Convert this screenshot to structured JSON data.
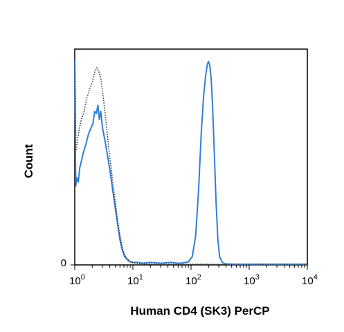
{
  "chart_data": {
    "type": "line",
    "title": "",
    "xlabel": "Human CD4 (SK3) PerCP",
    "ylabel": "Count",
    "x_scale": "log",
    "xlim": [
      1,
      10000
    ],
    "ylim": [
      0,
      100
    ],
    "x_ticks": [
      {
        "value": 1,
        "base": "10",
        "exp": "0"
      },
      {
        "value": 10,
        "base": "10",
        "exp": "1"
      },
      {
        "value": 100,
        "base": "10",
        "exp": "2"
      },
      {
        "value": 1000,
        "base": "10",
        "exp": "3"
      },
      {
        "value": 10000,
        "base": "10",
        "exp": "4"
      }
    ],
    "y_ticks": [
      {
        "value": 0,
        "label": "0"
      }
    ],
    "grid": false,
    "series": [
      {
        "style": "solid",
        "color": "#2f7ed8",
        "x": [
          1.0,
          1.04,
          1.09,
          1.15,
          1.22,
          1.3,
          1.4,
          1.55,
          1.72,
          1.9,
          2.05,
          2.2,
          2.35,
          2.5,
          2.65,
          2.8,
          3.0,
          3.3,
          3.6,
          4.0,
          4.5,
          5.0,
          5.5,
          6.0,
          6.6,
          7.2,
          8.0,
          9.0,
          10.0,
          12.0,
          15.0,
          20.0,
          30.0,
          45.0,
          60.0,
          75.0,
          90.0,
          105.0,
          120.0,
          135.0,
          150.0,
          165.0,
          180.0,
          192.0,
          200.0,
          210.0,
          222.0,
          235.0,
          250.0,
          270.0,
          290.0,
          310.0,
          340.0,
          380.0,
          500.0,
          1000.0,
          3000.0,
          10000.0
        ],
        "y": [
          99,
          38,
          42,
          40,
          47,
          50,
          54,
          58,
          63,
          66,
          68,
          74,
          73,
          77,
          70,
          74,
          66,
          60,
          54,
          46,
          36,
          27,
          19,
          12,
          7,
          4,
          2.5,
          1.5,
          1.2,
          1.2,
          0.8,
          1.2,
          0.8,
          1.2,
          0.8,
          1.0,
          1.5,
          4,
          14,
          36,
          64,
          82,
          92,
          97,
          98,
          96,
          90,
          76,
          56,
          30,
          12,
          4,
          1.5,
          0.5,
          0.3,
          0.3,
          0.3,
          0.3
        ]
      },
      {
        "style": "dotted",
        "color": "#333333",
        "x": [
          1.0,
          1.05,
          1.12,
          1.2,
          1.3,
          1.45,
          1.6,
          1.8,
          2.0,
          2.2,
          2.4,
          2.6,
          2.8,
          3.0,
          3.3,
          3.6,
          4.0,
          4.5,
          5.0,
          5.5,
          6.0,
          6.6,
          7.2,
          8.0,
          9.0,
          10.0,
          15.0,
          30.0,
          100.0,
          10000.0
        ],
        "y": [
          99,
          55,
          60,
          66,
          70,
          74,
          80,
          85,
          88,
          93,
          95,
          93,
          90,
          84,
          74,
          64,
          52,
          40,
          30,
          21,
          14,
          8,
          5,
          3,
          1.5,
          1.0,
          0.5,
          0.3,
          0.3,
          0.3
        ]
      }
    ]
  }
}
